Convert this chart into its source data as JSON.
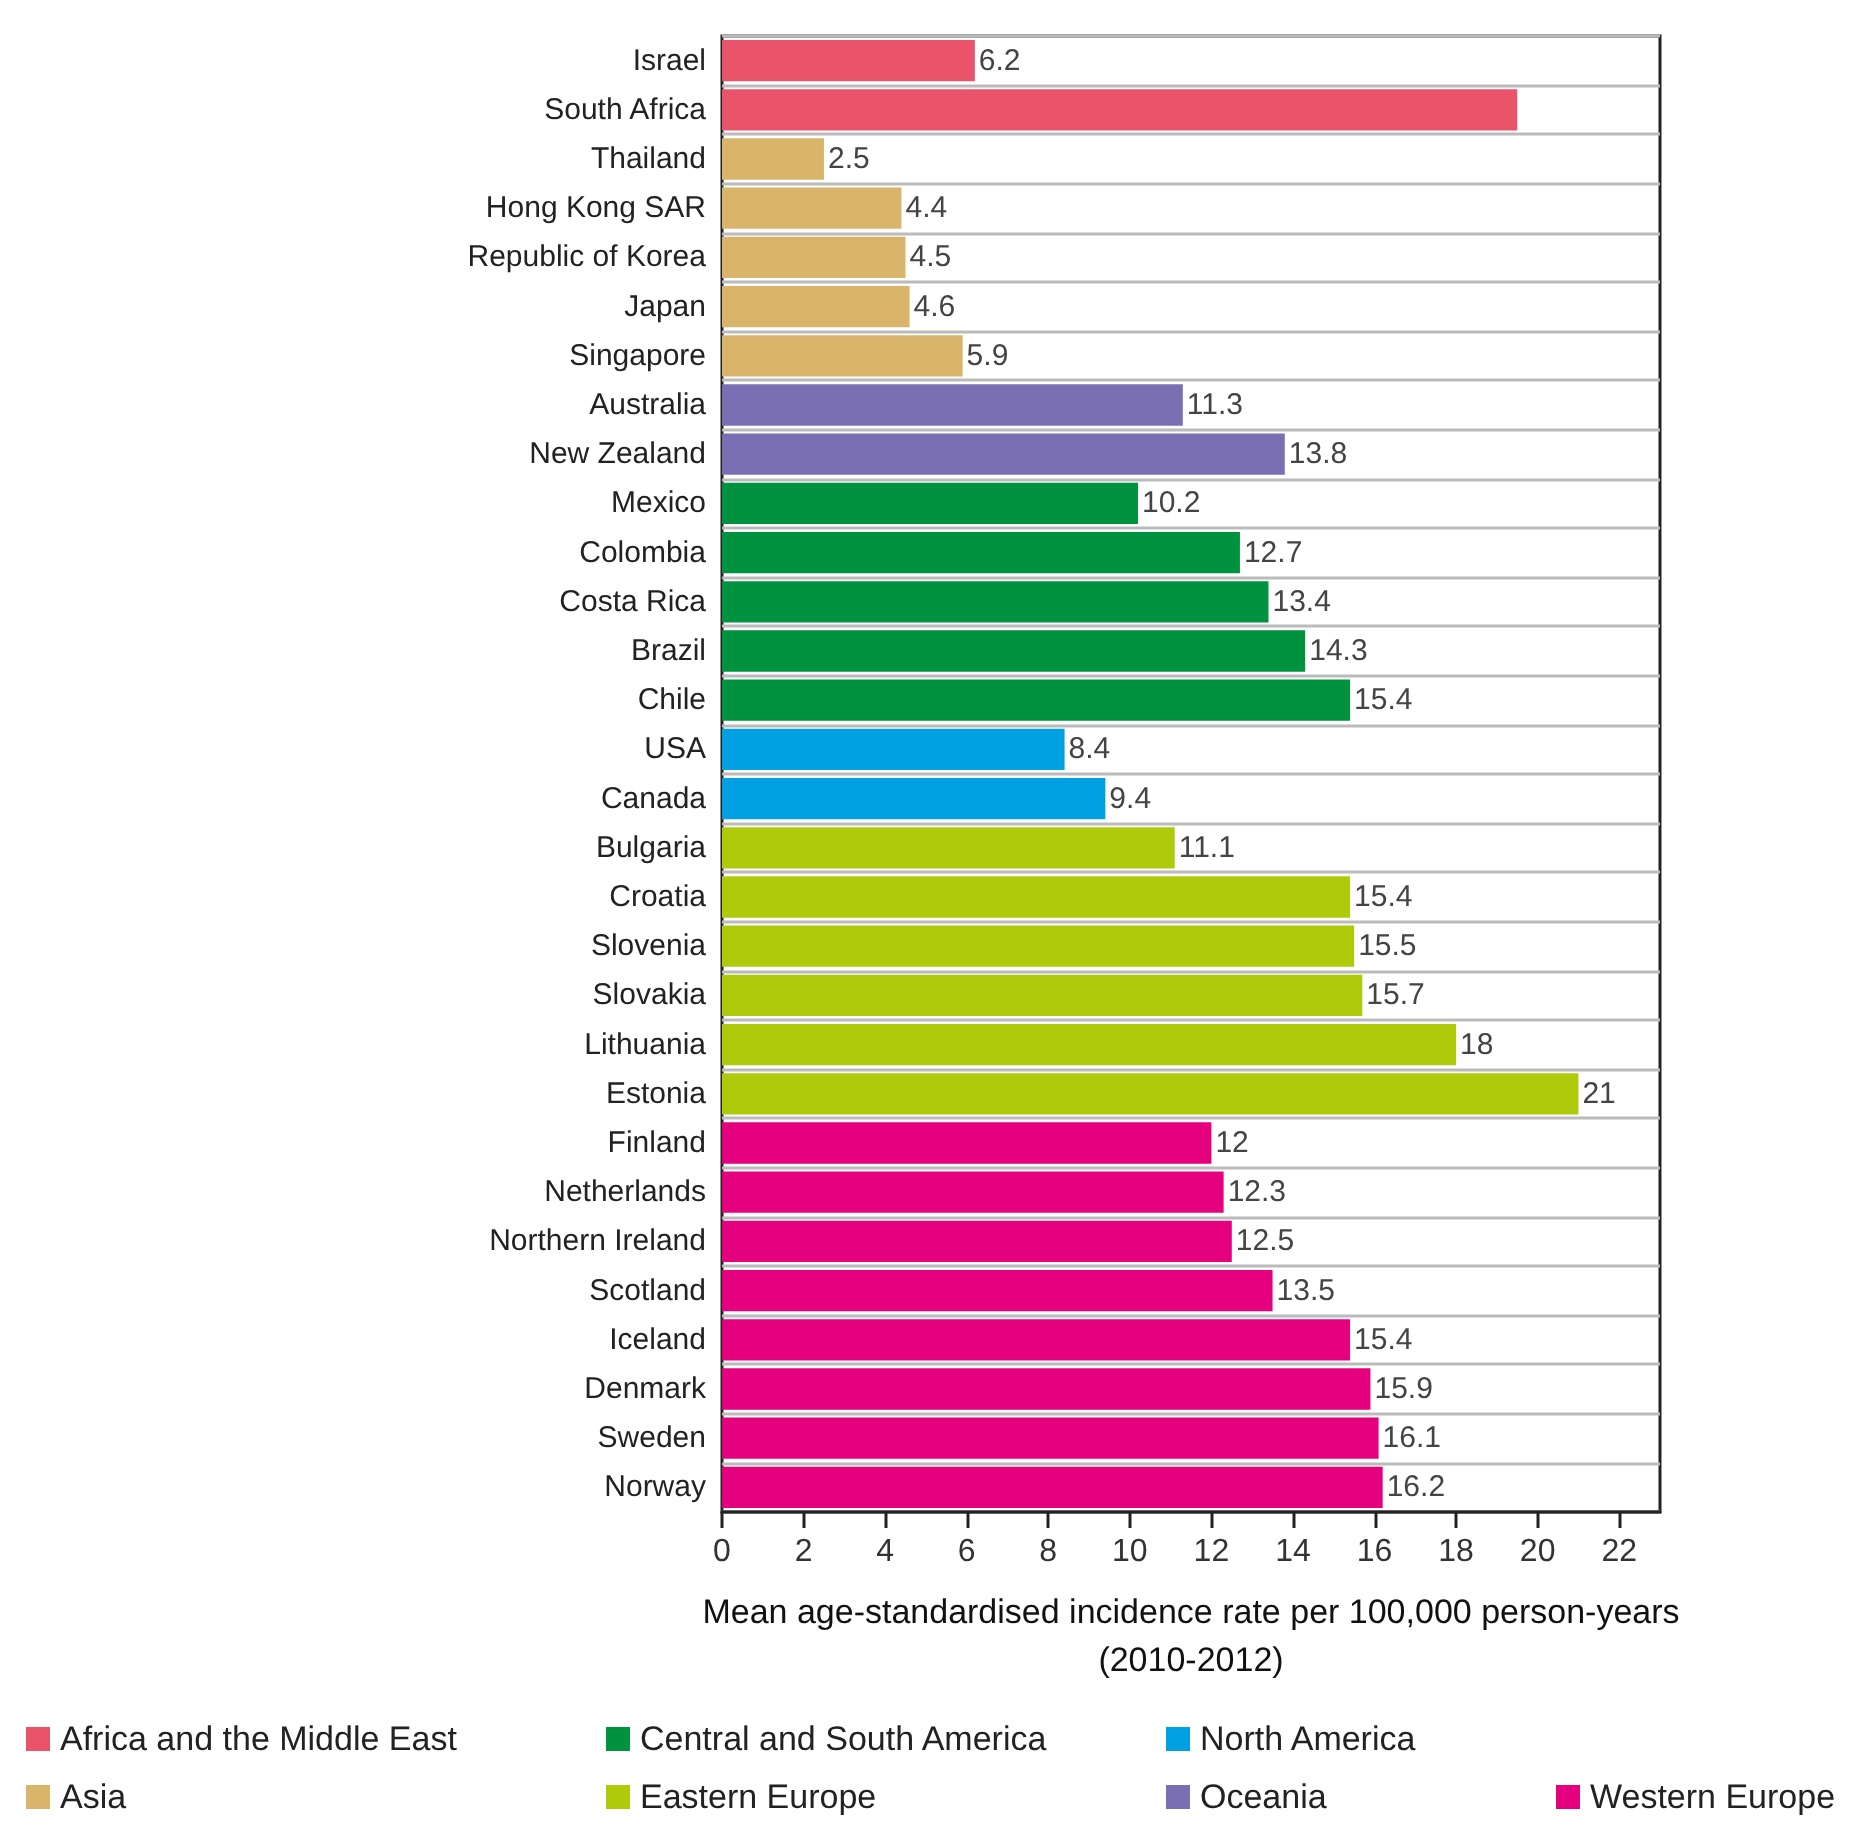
{
  "chart_data": {
    "type": "bar",
    "orientation": "horizontal",
    "xlabel": "Mean age-standardised incidence rate per 100,000 person-years\n(2010-2012)",
    "categories": [
      "Israel",
      "South Africa",
      "Thailand",
      "Hong Kong SAR",
      "Republic of Korea",
      "Japan",
      "Singapore",
      "Australia",
      "New Zealand",
      "Mexico",
      "Colombia",
      "Costa Rica",
      "Brazil",
      "Chile",
      "USA",
      "Canada",
      "Bulgaria",
      "Croatia",
      "Slovenia",
      "Slovakia",
      "Lithuania",
      "Estonia",
      "Finland",
      "Netherlands",
      "Northern Ireland",
      "Scotland",
      "Iceland",
      "Denmark",
      "Sweden",
      "Norway"
    ],
    "xlim": [
      0,
      23
    ],
    "xticks": [
      0,
      2,
      4,
      6,
      8,
      10,
      12,
      14,
      16,
      18,
      20,
      22
    ],
    "grid": "y",
    "legend": "bottom",
    "series": [
      {
        "name": "Africa and the Middle East",
        "color": "#e9546b",
        "values": [
          6.2,
          19.5,
          null,
          null,
          null,
          null,
          null,
          null,
          null,
          null,
          null,
          null,
          null,
          null,
          null,
          null,
          null,
          null,
          null,
          null,
          null,
          null,
          null,
          null,
          null,
          null,
          null,
          null,
          null,
          null
        ],
        "value_labels": [
          "6.2",
          null,
          null,
          null,
          null,
          null,
          null,
          null,
          null,
          null,
          null,
          null,
          null,
          null,
          null,
          null,
          null,
          null,
          null,
          null,
          null,
          null,
          null,
          null,
          null,
          null,
          null,
          null,
          null,
          null
        ]
      },
      {
        "name": "Asia",
        "color": "#d8b56a",
        "values": [
          null,
          null,
          2.5,
          4.4,
          4.5,
          4.6,
          5.9,
          null,
          null,
          null,
          null,
          null,
          null,
          null,
          null,
          null,
          null,
          null,
          null,
          null,
          null,
          null,
          null,
          null,
          null,
          null,
          null,
          null,
          null,
          null
        ],
        "value_labels": [
          null,
          null,
          "2.5",
          "4.4",
          "4.5",
          "4.6",
          "5.9",
          null,
          null,
          null,
          null,
          null,
          null,
          null,
          null,
          null,
          null,
          null,
          null,
          null,
          null,
          null,
          null,
          null,
          null,
          null,
          null,
          null,
          null,
          null
        ]
      },
      {
        "name": "Central and South America",
        "color": "#00923f",
        "values": [
          null,
          null,
          null,
          null,
          null,
          null,
          null,
          null,
          null,
          10.2,
          12.7,
          13.4,
          14.3,
          15.4,
          null,
          null,
          null,
          null,
          null,
          null,
          null,
          null,
          null,
          null,
          null,
          null,
          null,
          null,
          null,
          null
        ],
        "value_labels": [
          null,
          null,
          null,
          null,
          null,
          null,
          null,
          null,
          null,
          "10.2",
          "12.7",
          "13.4",
          "14.3",
          "15.4",
          null,
          null,
          null,
          null,
          null,
          null,
          null,
          null,
          null,
          null,
          null,
          null,
          null,
          null,
          null,
          null
        ]
      },
      {
        "name": "Eastern Europe",
        "color": "#afca0b",
        "values": [
          null,
          null,
          null,
          null,
          null,
          null,
          null,
          null,
          null,
          null,
          null,
          null,
          null,
          null,
          null,
          null,
          11.1,
          15.4,
          15.5,
          15.7,
          18,
          21,
          null,
          null,
          null,
          null,
          null,
          null,
          null,
          null
        ],
        "value_labels": [
          null,
          null,
          null,
          null,
          null,
          null,
          null,
          null,
          null,
          null,
          null,
          null,
          null,
          null,
          null,
          null,
          "11.1",
          "15.4",
          "15.5",
          "15.7",
          "18",
          "21",
          null,
          null,
          null,
          null,
          null,
          null,
          null,
          null
        ]
      },
      {
        "name": "North America",
        "color": "#00a0e2",
        "values": [
          null,
          null,
          null,
          null,
          null,
          null,
          null,
          null,
          null,
          null,
          null,
          null,
          null,
          null,
          8.4,
          9.4,
          null,
          null,
          null,
          null,
          null,
          null,
          null,
          null,
          null,
          null,
          null,
          null,
          null,
          null
        ],
        "value_labels": [
          null,
          null,
          null,
          null,
          null,
          null,
          null,
          null,
          null,
          null,
          null,
          null,
          null,
          null,
          "8.4",
          "9.4",
          null,
          null,
          null,
          null,
          null,
          null,
          null,
          null,
          null,
          null,
          null,
          null,
          null,
          null
        ]
      },
      {
        "name": "Oceania",
        "color": "#7b6fb4",
        "values": [
          null,
          null,
          null,
          null,
          null,
          null,
          null,
          11.3,
          13.8,
          null,
          null,
          null,
          null,
          null,
          null,
          null,
          null,
          null,
          null,
          null,
          null,
          null,
          null,
          null,
          null,
          null,
          null,
          null,
          null,
          null
        ],
        "value_labels": [
          null,
          null,
          null,
          null,
          null,
          null,
          null,
          "11.3",
          "13.8",
          null,
          null,
          null,
          null,
          null,
          null,
          null,
          null,
          null,
          null,
          null,
          null,
          null,
          null,
          null,
          null,
          null,
          null,
          null,
          null,
          null
        ]
      },
      {
        "name": "Western Europe",
        "color": "#e5007d",
        "values": [
          null,
          null,
          null,
          null,
          null,
          null,
          null,
          null,
          null,
          null,
          null,
          null,
          null,
          null,
          null,
          null,
          null,
          null,
          null,
          null,
          null,
          null,
          12,
          12.3,
          12.5,
          13.5,
          15.4,
          15.9,
          16.1,
          16.2
        ],
        "value_labels": [
          null,
          null,
          null,
          null,
          null,
          null,
          null,
          null,
          null,
          null,
          null,
          null,
          null,
          null,
          null,
          null,
          null,
          null,
          null,
          null,
          null,
          null,
          "12",
          "12.3",
          "12.5",
          "13.5",
          "15.4",
          "15.9",
          "16.1",
          "16.2"
        ]
      }
    ]
  }
}
